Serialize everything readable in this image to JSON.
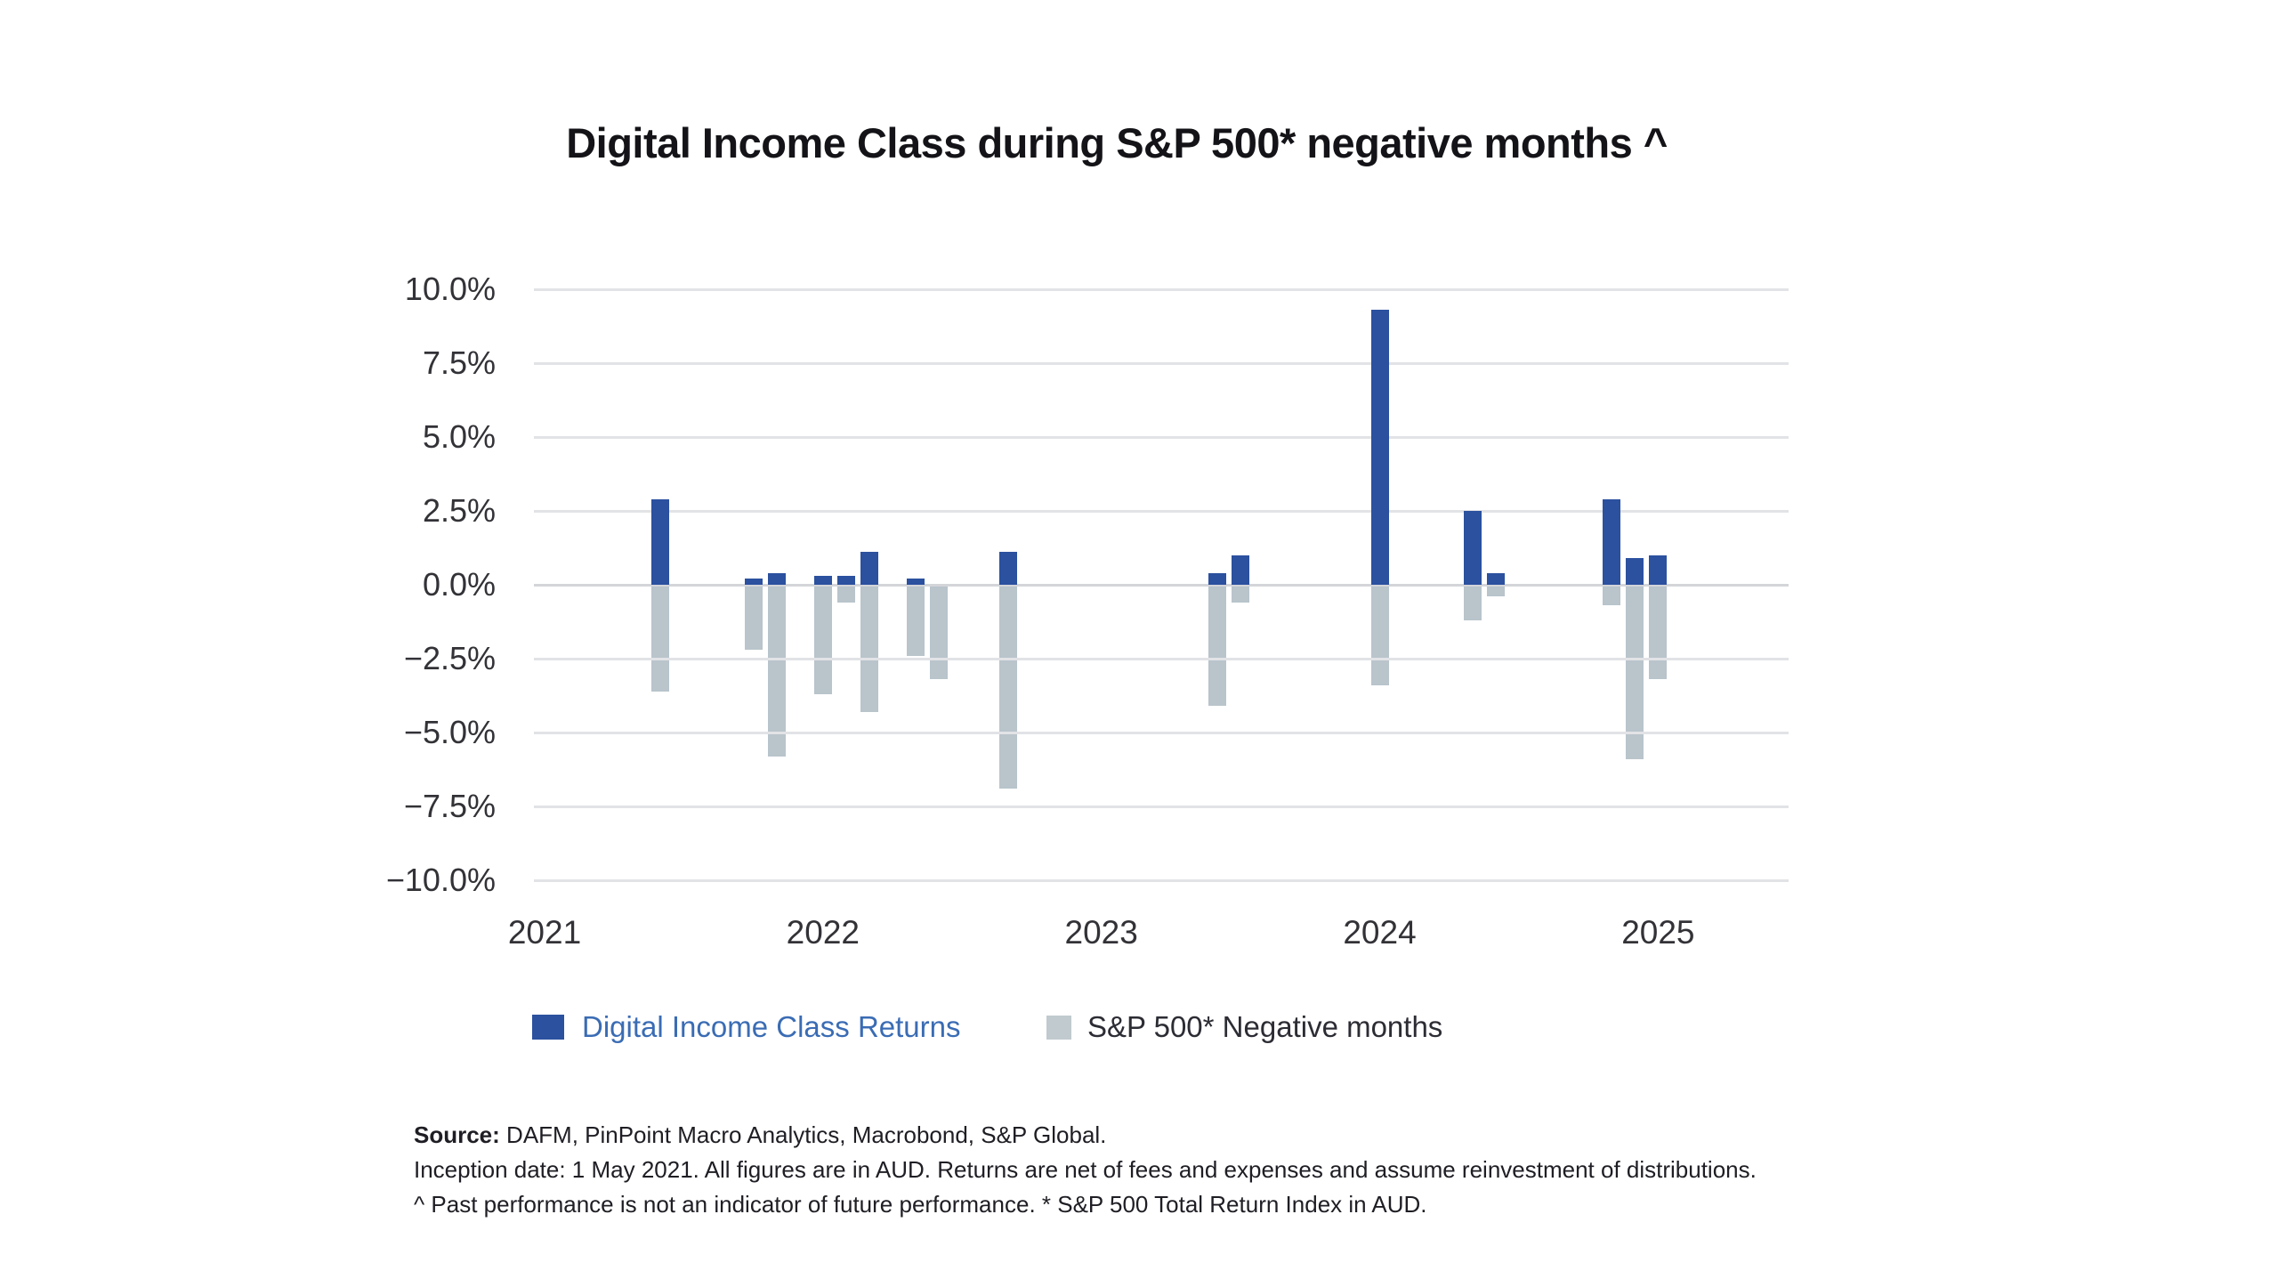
{
  "title": "Digital Income Class during S&P 500* negative months ^",
  "colors": {
    "bar_blue": "#2b519f",
    "bar_gray": "#b9c4cb",
    "legend_blue_text": "#3a6cb4",
    "legend_dark_text": "#2c2c34",
    "grid": "#e2e3e6",
    "zero_line": "#d3d5d9"
  },
  "y_axis": {
    "tick_labels": [
      "10.0%",
      "7.5%",
      "5.0%",
      "2.5%",
      "0.0%",
      "−2.5%",
      "−5.0%",
      "−7.5%",
      "−10.0%"
    ],
    "tick_values": [
      10,
      7.5,
      5,
      2.5,
      0,
      -2.5,
      -5,
      -7.5,
      -10
    ]
  },
  "x_axis": {
    "tick_labels": [
      "2021",
      "2022",
      "2023",
      "2024",
      "2025"
    ]
  },
  "legend": {
    "items": [
      {
        "label": "Digital Income Class Returns",
        "color": "#2b519f"
      },
      {
        "label": "S&P 500* Negative months",
        "color": "#c0cacf"
      }
    ]
  },
  "footnotes": {
    "source_label": "Source:",
    "source_text": " DAFM, PinPoint Macro Analytics, Macrobond, S&P Global.",
    "line2": "Inception date: 1 May 2021. All figures are in AUD. Returns are net of fees and expenses and assume reinvestment of distributions.",
    "line3": "^ Past performance is not an indicator of future performance. * S&P 500 Total Return Index in AUD."
  },
  "chart_data": {
    "type": "bar",
    "title": "Digital Income Class during S&P 500* negative months ^",
    "xlabel": "",
    "ylabel": "",
    "ylim": [
      -10,
      10
    ],
    "grid": true,
    "legend_position": "bottom",
    "categories": [
      "Jun 2021",
      "Oct 2021",
      "Nov 2021",
      "Jan 2022",
      "Feb 2022",
      "Mar 2022",
      "May 2022",
      "Jun 2022",
      "Sep 2022",
      "Jun 2023",
      "Jul 2023",
      "Jan 2024",
      "May 2024",
      "Jun 2024",
      "Nov 2024",
      "Dec 2024",
      "Jan 2025"
    ],
    "series": [
      {
        "name": "Digital Income Class Returns",
        "color": "#2b519f",
        "values": [
          2.9,
          0.2,
          0.4,
          0.3,
          0.3,
          1.1,
          0.2,
          0.0,
          1.1,
          0.4,
          1.0,
          9.3,
          2.5,
          0.4,
          2.9,
          0.9,
          1.0
        ]
      },
      {
        "name": "S&P 500* Negative months",
        "color": "#b9c4cb",
        "values": [
          -3.6,
          -2.2,
          -5.8,
          -3.7,
          -0.6,
          -4.3,
          -2.4,
          -3.2,
          -6.9,
          -4.1,
          -0.6,
          -3.4,
          -1.2,
          -0.4,
          -0.7,
          -5.9,
          -3.2
        ]
      }
    ]
  }
}
